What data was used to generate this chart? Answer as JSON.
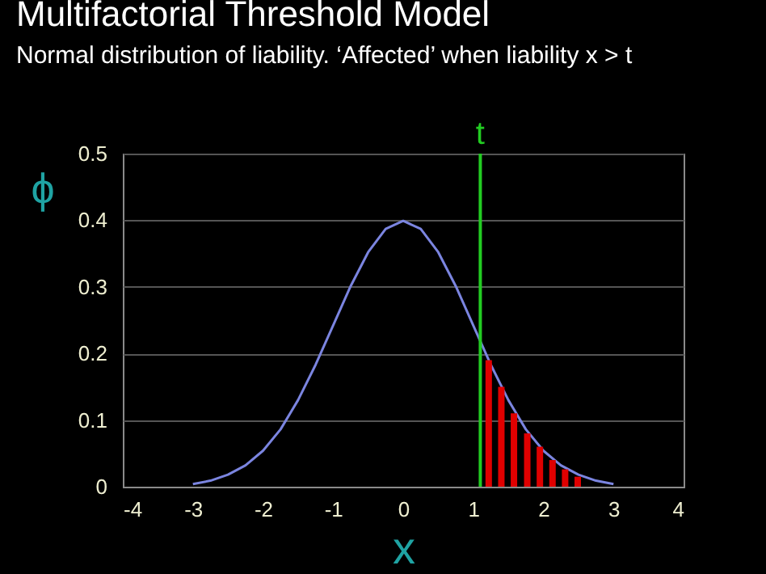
{
  "chart_data": {
    "type": "line",
    "title": "Multifactorial Threshold Model",
    "subtitle": "Normal distribution of liability.  ‘Affected’ when liability x > t",
    "xlabel": "x",
    "ylabel": "ϕ",
    "xlim": [
      -4,
      4
    ],
    "xticks": [
      -4,
      -3,
      -2,
      -1,
      0,
      1,
      2,
      3,
      4
    ],
    "ylim": [
      0,
      0.5
    ],
    "yticks": [
      0,
      0.1,
      0.2,
      0.3,
      0.4,
      0.5
    ],
    "grid": "y",
    "series": [
      {
        "color": "#7b85e0",
        "x": [
          -3,
          -2.75,
          -2.5,
          -2.25,
          -2,
          -1.75,
          -1.5,
          -1.25,
          -1,
          -0.75,
          -0.5,
          -0.25,
          0,
          0.25,
          0.5,
          0.75,
          1,
          1.25,
          1.5,
          1.75,
          2,
          2.25,
          2.5,
          2.75,
          3
        ],
        "values": [
          0.004,
          0.009,
          0.018,
          0.032,
          0.054,
          0.086,
          0.13,
          0.183,
          0.242,
          0.301,
          0.352,
          0.387,
          0.399,
          0.387,
          0.352,
          0.301,
          0.242,
          0.183,
          0.13,
          0.086,
          0.054,
          0.032,
          0.018,
          0.009,
          0.004
        ]
      },
      {
        "type": "bar",
        "color": "#e00000",
        "x": [
          1.22,
          1.4,
          1.58,
          1.77,
          1.95,
          2.13,
          2.31,
          2.49
        ],
        "values": [
          0.19,
          0.15,
          0.11,
          0.08,
          0.06,
          0.04,
          0.026,
          0.015
        ]
      }
    ],
    "ref_lines": [
      {
        "axis": "x",
        "value": 1.1,
        "label": "t",
        "color": "#22cc22"
      }
    ]
  }
}
